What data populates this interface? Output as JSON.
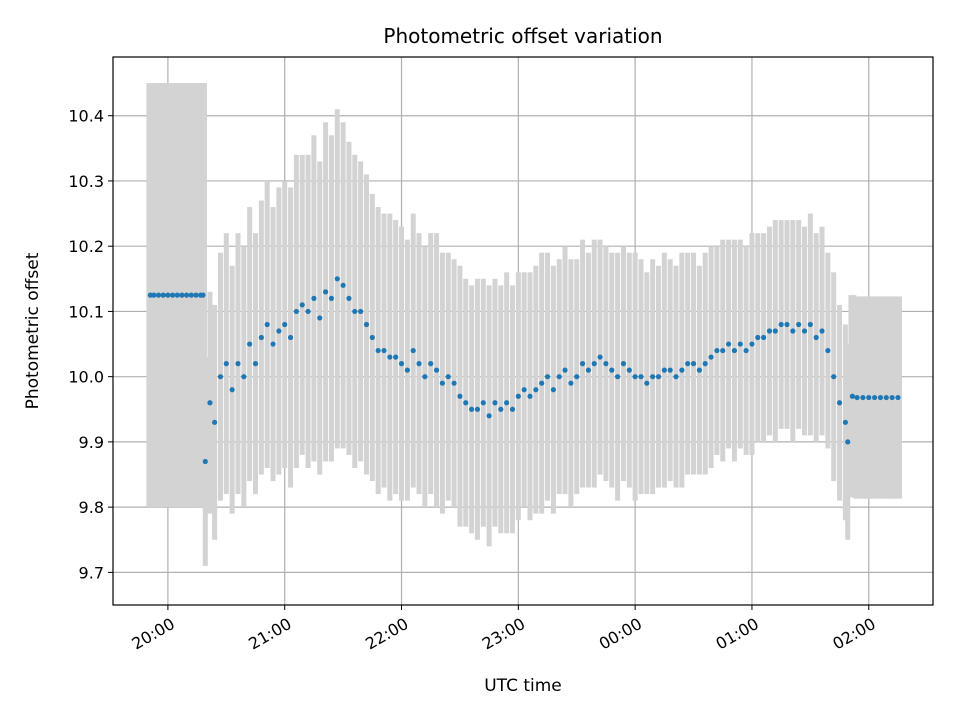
{
  "chart_data": {
    "type": "scatter",
    "title": "Photometric offset variation",
    "xlabel": "UTC time",
    "ylabel": "Photometric offset",
    "x_ticks": [
      "20:00",
      "21:00",
      "22:00",
      "23:00",
      "00:00",
      "01:00",
      "02:00"
    ],
    "y_ticks": [
      "9.7",
      "9.8",
      "9.9",
      "10.0",
      "10.1",
      "10.2",
      "10.3",
      "10.4"
    ],
    "xlim_hours": [
      19.53,
      26.55
    ],
    "ylim": [
      9.65,
      10.49
    ],
    "grid": true,
    "colors": {
      "points": "#1f77b4",
      "error_bars": "#d3d3d3"
    },
    "series": [
      {
        "x_hours": [
          19.85,
          19.88,
          19.92,
          19.96,
          20.0,
          20.04,
          20.08,
          20.12,
          20.16,
          20.2,
          20.24,
          20.28,
          20.3,
          20.32,
          20.36,
          20.4,
          20.45,
          20.5,
          20.55,
          20.6,
          20.65,
          20.7,
          20.75,
          20.8,
          20.85,
          20.9,
          20.95,
          21.0,
          21.05,
          21.1,
          21.15,
          21.2,
          21.25,
          21.3,
          21.35,
          21.4,
          21.45,
          21.5,
          21.55,
          21.6,
          21.65,
          21.7,
          21.75,
          21.8,
          21.85,
          21.9,
          21.95,
          22.0,
          22.05,
          22.1,
          22.15,
          22.2,
          22.25,
          22.3,
          22.35,
          22.4,
          22.45,
          22.5,
          22.55,
          22.6,
          22.65,
          22.7,
          22.75,
          22.8,
          22.85,
          22.9,
          22.95,
          23.0,
          23.05,
          23.1,
          23.15,
          23.2,
          23.25,
          23.3,
          23.35,
          23.4,
          23.45,
          23.5,
          23.55,
          23.6,
          23.65,
          23.7,
          23.75,
          23.8,
          23.85,
          23.9,
          23.95,
          24.0,
          24.05,
          24.1,
          24.15,
          24.2,
          24.25,
          24.3,
          24.35,
          24.4,
          24.45,
          24.5,
          24.55,
          24.6,
          24.65,
          24.7,
          24.75,
          24.8,
          24.85,
          24.9,
          24.95,
          25.0,
          25.05,
          25.1,
          25.15,
          25.2,
          25.25,
          25.3,
          25.35,
          25.4,
          25.45,
          25.5,
          25.55,
          25.6,
          25.65,
          25.7,
          25.75,
          25.8,
          25.82,
          25.86,
          25.9,
          25.95,
          26.0,
          26.05,
          26.1,
          26.15,
          26.2,
          26.25
        ],
        "y": [
          10.125,
          10.125,
          10.125,
          10.125,
          10.125,
          10.125,
          10.125,
          10.125,
          10.125,
          10.125,
          10.125,
          10.125,
          10.125,
          9.87,
          9.96,
          9.93,
          10.0,
          10.02,
          9.98,
          10.02,
          10.0,
          10.05,
          10.02,
          10.06,
          10.08,
          10.05,
          10.07,
          10.08,
          10.06,
          10.1,
          10.11,
          10.1,
          10.12,
          10.09,
          10.13,
          10.12,
          10.15,
          10.14,
          10.12,
          10.1,
          10.1,
          10.08,
          10.06,
          10.04,
          10.04,
          10.03,
          10.03,
          10.02,
          10.01,
          10.04,
          10.02,
          10.0,
          10.02,
          10.01,
          9.99,
          10.0,
          9.99,
          9.97,
          9.96,
          9.95,
          9.95,
          9.96,
          9.94,
          9.96,
          9.95,
          9.96,
          9.95,
          9.97,
          9.98,
          9.97,
          9.98,
          9.99,
          10.0,
          9.98,
          10.0,
          10.01,
          9.99,
          10.0,
          10.02,
          10.01,
          10.02,
          10.03,
          10.02,
          10.01,
          10.0,
          10.02,
          10.01,
          10.0,
          10.0,
          9.99,
          10.0,
          10.0,
          10.01,
          10.01,
          10.0,
          10.01,
          10.02,
          10.02,
          10.01,
          10.02,
          10.03,
          10.04,
          10.04,
          10.05,
          10.04,
          10.05,
          10.04,
          10.05,
          10.06,
          10.06,
          10.07,
          10.07,
          10.08,
          10.08,
          10.07,
          10.08,
          10.07,
          10.08,
          10.06,
          10.07,
          10.04,
          10.0,
          9.96,
          9.93,
          9.9,
          9.97,
          9.968,
          9.968,
          9.968,
          9.968,
          9.968,
          9.968,
          9.968,
          9.968
        ],
        "error": [
          0.325,
          0.325,
          0.325,
          0.325,
          0.325,
          0.325,
          0.325,
          0.325,
          0.325,
          0.325,
          0.325,
          0.325,
          0.325,
          0.16,
          0.17,
          0.18,
          0.19,
          0.2,
          0.19,
          0.2,
          0.2,
          0.21,
          0.2,
          0.21,
          0.22,
          0.21,
          0.22,
          0.22,
          0.23,
          0.24,
          0.23,
          0.24,
          0.25,
          0.24,
          0.26,
          0.25,
          0.26,
          0.25,
          0.24,
          0.24,
          0.23,
          0.23,
          0.22,
          0.22,
          0.21,
          0.22,
          0.21,
          0.21,
          0.2,
          0.21,
          0.2,
          0.2,
          0.2,
          0.21,
          0.2,
          0.19,
          0.19,
          0.2,
          0.19,
          0.19,
          0.2,
          0.19,
          0.2,
          0.19,
          0.19,
          0.2,
          0.19,
          0.19,
          0.18,
          0.19,
          0.19,
          0.2,
          0.19,
          0.19,
          0.18,
          0.19,
          0.19,
          0.18,
          0.19,
          0.18,
          0.19,
          0.18,
          0.18,
          0.18,
          0.19,
          0.18,
          0.18,
          0.19,
          0.18,
          0.17,
          0.18,
          0.17,
          0.18,
          0.17,
          0.17,
          0.18,
          0.17,
          0.17,
          0.16,
          0.17,
          0.17,
          0.16,
          0.17,
          0.16,
          0.17,
          0.16,
          0.16,
          0.17,
          0.16,
          0.16,
          0.16,
          0.17,
          0.16,
          0.16,
          0.17,
          0.16,
          0.16,
          0.17,
          0.16,
          0.16,
          0.15,
          0.16,
          0.15,
          0.15,
          0.15,
          0.155,
          0.155,
          0.155,
          0.155,
          0.155,
          0.155,
          0.155,
          0.155,
          0.155
        ]
      }
    ]
  }
}
